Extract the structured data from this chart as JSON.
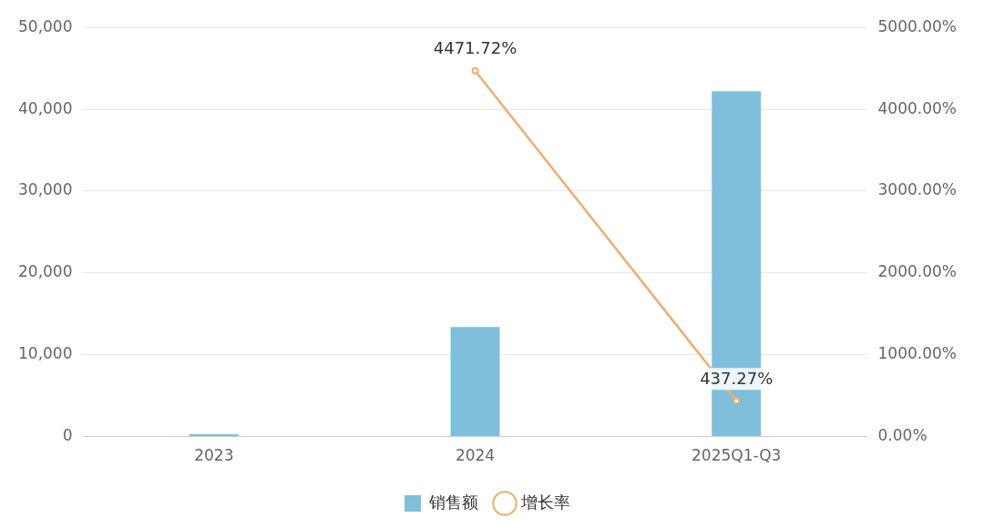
{
  "chart_data": {
    "type": "bar",
    "categories": [
      "2023",
      "2024",
      "2025Q1-Q3"
    ],
    "series": [
      {
        "name": "销售额",
        "color": "#7fbfdc",
        "values": [
          300,
          13400,
          42200
        ]
      },
      {
        "name": "增长率",
        "color": "#f0ad6e",
        "type": "line",
        "axis": "y2",
        "marker": "circle",
        "values": [
          null,
          4471.72,
          437.27
        ],
        "value_labels": [
          null,
          "4471.72%",
          "437.27%"
        ]
      }
    ],
    "ylim": [
      0,
      50000
    ],
    "yticks": [
      {
        "value": 0,
        "label": "0"
      },
      {
        "value": 10000,
        "label": "10,000"
      },
      {
        "value": 20000,
        "label": "20,000"
      },
      {
        "value": 30000,
        "label": "30,000"
      },
      {
        "value": 40000,
        "label": "40,000"
      },
      {
        "value": 50000,
        "label": "50,000"
      }
    ],
    "y2lim": [
      0,
      5000
    ],
    "y2ticks": [
      {
        "value": 0,
        "label": "0.00%"
      },
      {
        "value": 1000,
        "label": "1000.00%"
      },
      {
        "value": 2000,
        "label": "2000.00%"
      },
      {
        "value": 3000,
        "label": "3000.00%"
      },
      {
        "value": 4000,
        "label": "4000.00%"
      },
      {
        "value": 5000,
        "label": "5000.00%"
      }
    ],
    "grid": "y",
    "legend": "bottom"
  }
}
